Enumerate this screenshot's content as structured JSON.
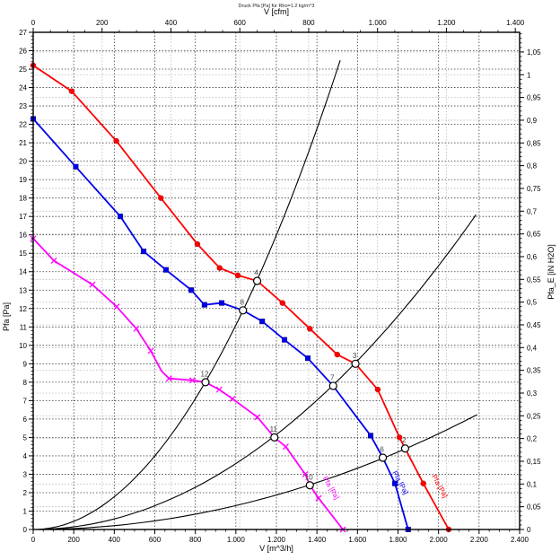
{
  "chart_data": {
    "type": "line",
    "title": "Druck Pfa [Pa] für Rho=1.2 kg/m^3",
    "grid": true,
    "axes": {
      "bottom": {
        "label": "V [m^3/h]",
        "min": 0,
        "max": 2400,
        "major_step": 200,
        "minor_step": 50,
        "tick_labels": [
          "0",
          "200",
          "400",
          "600",
          "800",
          "1.000",
          "1.200",
          "1.400",
          "1.600",
          "1.800",
          "2.000",
          "2.200",
          "2.400"
        ]
      },
      "top": {
        "label": "V [cfm]",
        "min": 0,
        "max": 1412.6,
        "major_step": 200,
        "minor_step": 50,
        "m3h_per_cfm": 1.69901,
        "tick_labels": [
          "0",
          "200",
          "400",
          "600",
          "800",
          "1.000",
          "1.200",
          "1.400"
        ]
      },
      "left": {
        "label": "Pfa [Pa]",
        "min": 0,
        "max": 27,
        "major_step": 1,
        "minor_step": 0.2,
        "tick_labels": [
          "0",
          "1",
          "2",
          "3",
          "4",
          "5",
          "6",
          "7",
          "8",
          "9",
          "10",
          "11",
          "12",
          "13",
          "14",
          "15",
          "16",
          "17",
          "18",
          "19",
          "20",
          "21",
          "22",
          "23",
          "24",
          "25",
          "26",
          "27"
        ]
      },
      "right": {
        "label": "Pfa_E [iN H2O]",
        "min": 0,
        "max": 1.0933,
        "major_step": 0.05,
        "minor_step": 0.01,
        "tick_labels": [
          "0",
          "0,05",
          "0,1",
          "0,15",
          "0,2",
          "0,25",
          "0,3",
          "0,35",
          "0,4",
          "0,45",
          "0,5",
          "0,55",
          "0,6",
          "0,65",
          "0,7",
          "0,75",
          "0,8",
          "0,85",
          "0,9",
          "0,95",
          "1",
          "1,05"
        ]
      }
    },
    "series": [
      {
        "name": "fan-curve-high-speed",
        "color": "#ff0000",
        "marker": "circle",
        "points": [
          [
            0,
            25.2
          ],
          [
            190,
            23.8
          ],
          [
            410,
            21.1
          ],
          [
            630,
            18.0
          ],
          [
            810,
            15.5
          ],
          [
            920,
            14.2
          ],
          [
            1010,
            13.8
          ],
          [
            1105,
            13.5
          ],
          [
            1230,
            12.3
          ],
          [
            1365,
            10.9
          ],
          [
            1500,
            9.5
          ],
          [
            1590,
            9.0
          ],
          [
            1700,
            7.6
          ],
          [
            1807,
            5.0
          ],
          [
            1835,
            4.4
          ],
          [
            1925,
            2.5
          ],
          [
            2050,
            0
          ]
        ],
        "marker_indices": [
          0,
          1,
          2,
          3,
          4,
          5,
          6,
          8,
          9,
          10,
          12,
          13,
          15,
          16
        ]
      },
      {
        "name": "fan-curve-mid-speed",
        "color": "#0000ee",
        "marker": "square",
        "points": [
          [
            0,
            22.3
          ],
          [
            210,
            19.7
          ],
          [
            430,
            17.0
          ],
          [
            545,
            15.1
          ],
          [
            655,
            14.1
          ],
          [
            780,
            13.0
          ],
          [
            845,
            12.2
          ],
          [
            930,
            12.3
          ],
          [
            1035,
            11.9
          ],
          [
            1130,
            11.3
          ],
          [
            1240,
            10.3
          ],
          [
            1355,
            9.3
          ],
          [
            1480,
            7.8
          ],
          [
            1665,
            5.1
          ],
          [
            1725,
            3.9
          ],
          [
            1785,
            2.5
          ],
          [
            1850,
            0
          ]
        ],
        "marker_indices": [
          0,
          1,
          2,
          3,
          4,
          5,
          6,
          7,
          9,
          10,
          11,
          13,
          15,
          16
        ]
      },
      {
        "name": "fan-curve-low-speed",
        "color": "#ff00ff",
        "marker": "x",
        "points": [
          [
            0,
            15.8
          ],
          [
            102,
            14.6
          ],
          [
            292,
            13.3
          ],
          [
            412,
            12.1
          ],
          [
            509,
            10.9
          ],
          [
            580,
            9.7
          ],
          [
            633,
            8.6
          ],
          [
            670,
            8.2
          ],
          [
            785,
            8.1
          ],
          [
            850,
            8.0
          ],
          [
            918,
            7.6
          ],
          [
            983,
            7.1
          ],
          [
            1106,
            6.1
          ],
          [
            1190,
            5.0
          ],
          [
            1246,
            4.5
          ],
          [
            1342,
            3.0
          ],
          [
            1365,
            2.4
          ],
          [
            1408,
            1.7
          ],
          [
            1528,
            0
          ]
        ],
        "marker_indices": [
          0,
          1,
          2,
          3,
          4,
          5,
          7,
          8,
          10,
          11,
          12,
          14,
          15,
          17,
          18
        ]
      }
    ],
    "system_curves": [
      {
        "name": "system-curve-1",
        "k": 1.11e-05,
        "v_max": 1515
      },
      {
        "name": "system-curve-2",
        "k": 3.58e-06,
        "v_max": 2185
      },
      {
        "name": "system-curve-3",
        "k": 1.3e-06,
        "v_max": 2190
      }
    ],
    "operating_points": [
      {
        "label": "4",
        "v": 1105,
        "pa": 13.5
      },
      {
        "label": "8",
        "v": 1035,
        "pa": 11.9
      },
      {
        "label": "12",
        "v": 850,
        "pa": 8.0
      },
      {
        "label": "3",
        "v": 1590,
        "pa": 9.0
      },
      {
        "label": "7",
        "v": 1480,
        "pa": 7.8
      },
      {
        "label": "11",
        "v": 1190,
        "pa": 5.0
      },
      {
        "label": "2",
        "v": 1835,
        "pa": 4.4
      },
      {
        "label": "6",
        "v": 1725,
        "pa": 3.9
      },
      {
        "label": "10",
        "v": 1365,
        "pa": 2.4
      }
    ],
    "curve_tail_labels": [
      {
        "text": "Pfa [Pa]",
        "color": "#ff0000",
        "v": 1965,
        "pa": 2.9,
        "angle": 61
      },
      {
        "text": "Pfa [Pa]",
        "color": "#0000ee",
        "v": 1772,
        "pa": 3.1,
        "angle": 62
      },
      {
        "text": "Pfa [Pa]",
        "color": "#ff00ff",
        "v": 1428,
        "pa": 2.8,
        "angle": 60
      }
    ],
    "colors": {
      "frame": "#000000",
      "grid_major": "#3c3c3c",
      "grid_minor": "#b8b8b8",
      "system_curve": "#000000",
      "op_point_fill": "#ffffff",
      "op_point_stroke": "#000000",
      "op_label": "#444444"
    }
  }
}
